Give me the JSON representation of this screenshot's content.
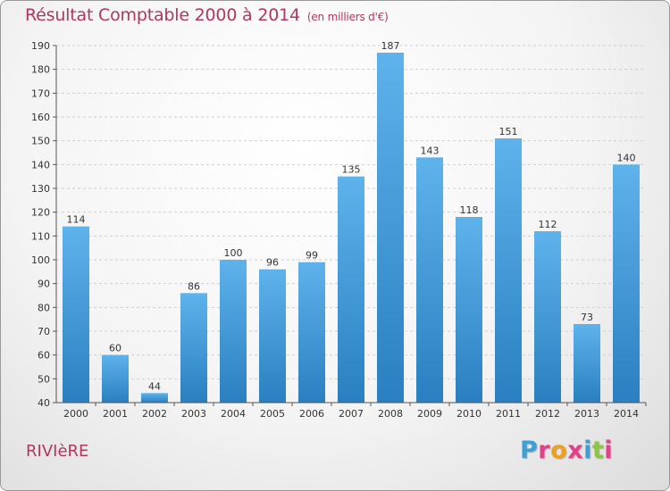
{
  "header": {
    "title": "Résultat Comptable 2000 à 2014",
    "unit": "(en milliers d'€)"
  },
  "commune": "RIVIèRE",
  "logo": {
    "text": "Proxiti",
    "letters": [
      {
        "ch": "P",
        "color": "#3aa0d8"
      },
      {
        "ch": "r",
        "color": "#e43f8a"
      },
      {
        "ch": "o",
        "color": "#f0a020"
      },
      {
        "ch": "x",
        "color": "#e43f8a"
      },
      {
        "ch": "i",
        "color": "#3aa0d8"
      },
      {
        "ch": "t",
        "color": "#8cc63e"
      },
      {
        "ch": "i",
        "color": "#e43f8a"
      }
    ]
  },
  "colors": {
    "title": "#b0375e",
    "bar_light": "#5eb3ec",
    "bar_dark": "#2a7fc0",
    "grid": "#cfcfcf",
    "axis": "#555555",
    "label": "#333333"
  },
  "chart_data": {
    "type": "bar",
    "title": "Résultat Comptable 2000 à 2014",
    "subtitle": "(en milliers d'€)",
    "xlabel": "",
    "ylabel": "",
    "categories": [
      "2000",
      "2001",
      "2002",
      "2003",
      "2004",
      "2005",
      "2006",
      "2007",
      "2008",
      "2009",
      "2010",
      "2011",
      "2012",
      "2013",
      "2014"
    ],
    "values": [
      114,
      60,
      44,
      86,
      100,
      96,
      99,
      135,
      187,
      143,
      118,
      151,
      112,
      73,
      140
    ],
    "ylim": [
      40,
      190
    ],
    "yticks": [
      40,
      50,
      60,
      70,
      80,
      90,
      100,
      110,
      120,
      130,
      140,
      150,
      160,
      170,
      180,
      190
    ],
    "grid": true,
    "data_labels": true,
    "legend": "none"
  }
}
